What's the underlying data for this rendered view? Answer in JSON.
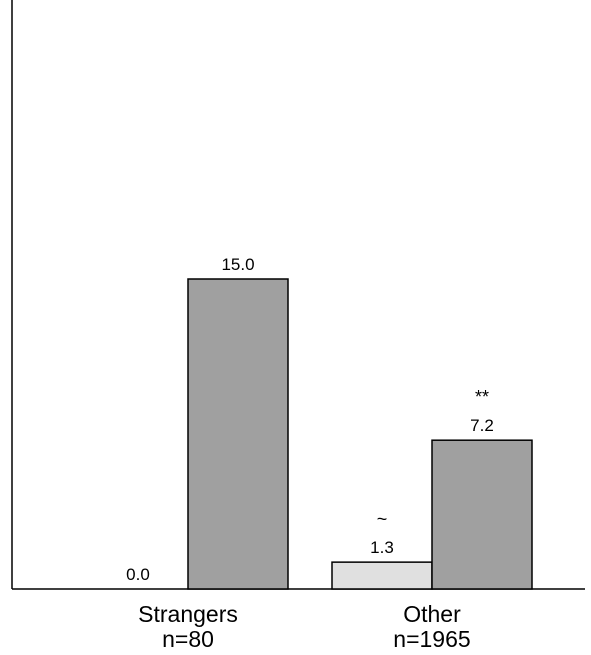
{
  "chart_data": {
    "type": "bar",
    "categories": [
      "Strangers",
      "Other"
    ],
    "category_sublabels": [
      "n=80",
      "n=1965"
    ],
    "series": [
      {
        "values": [
          0.0,
          1.3
        ],
        "color": "#e0e0e0"
      },
      {
        "values": [
          15.0,
          7.2
        ],
        "color": "#a0a0a0"
      }
    ],
    "value_labels": [
      [
        "0.0",
        "1.3"
      ],
      [
        "15.0",
        "7.2"
      ]
    ],
    "significance": [
      [
        "",
        "~"
      ],
      [
        "",
        "**"
      ]
    ],
    "ylim": [
      0,
      28.5
    ],
    "grid": false,
    "legend": "none"
  }
}
